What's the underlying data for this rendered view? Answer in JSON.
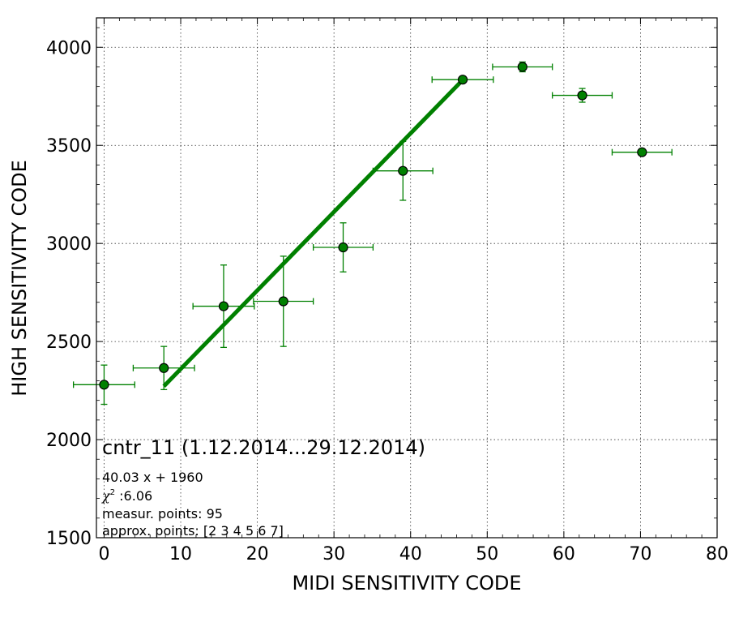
{
  "chart_data": {
    "type": "scatter",
    "xlabel": "MIDI SENSITIVITY CODE",
    "ylabel": "HIGH SENSITIVITY CODE",
    "xlim": [
      -1,
      80
    ],
    "ylim": [
      1500,
      4150
    ],
    "xticks": [
      0,
      10,
      20,
      30,
      40,
      50,
      60,
      70,
      80
    ],
    "yticks": [
      1500,
      2000,
      2500,
      3000,
      3500,
      4000
    ],
    "grid": true,
    "colors": {
      "series": "#008000",
      "marker_edge": "#000000"
    },
    "points": [
      {
        "x": 0.0,
        "y": 2280,
        "xerr": 4.0,
        "yerr": 100
      },
      {
        "x": 7.8,
        "y": 2365,
        "xerr": 4.0,
        "yerr": 110
      },
      {
        "x": 15.6,
        "y": 2680,
        "xerr": 4.0,
        "yerr": 210
      },
      {
        "x": 23.4,
        "y": 2705,
        "xerr": 3.9,
        "yerr": 230
      },
      {
        "x": 31.2,
        "y": 2980,
        "xerr": 3.9,
        "yerr": 125
      },
      {
        "x": 39.0,
        "y": 3370,
        "xerr": 3.9,
        "yerr": 150
      },
      {
        "x": 46.8,
        "y": 3835,
        "xerr": 4.0,
        "yerr": 10
      },
      {
        "x": 54.6,
        "y": 3900,
        "xerr": 3.9,
        "yerr": 25
      },
      {
        "x": 62.4,
        "y": 3755,
        "xerr": 3.9,
        "yerr": 35
      },
      {
        "x": 70.2,
        "y": 3465,
        "xerr": 3.9,
        "yerr": 10
      }
    ],
    "fit": {
      "slope": 40.03,
      "intercept": 1960,
      "x_range": [
        7.8,
        46.8
      ]
    },
    "annotations": {
      "title": "cntr_11 (1.12.2014...29.12.2014)",
      "equation": "40.03 x + 1960",
      "chi2_label": "χ",
      "chi2_sup": "2",
      "chi2_value": " :6.06",
      "measur_points": "measur. points: 95",
      "approx_points": "approx. points: [2 3 4 5 6 7]"
    }
  }
}
